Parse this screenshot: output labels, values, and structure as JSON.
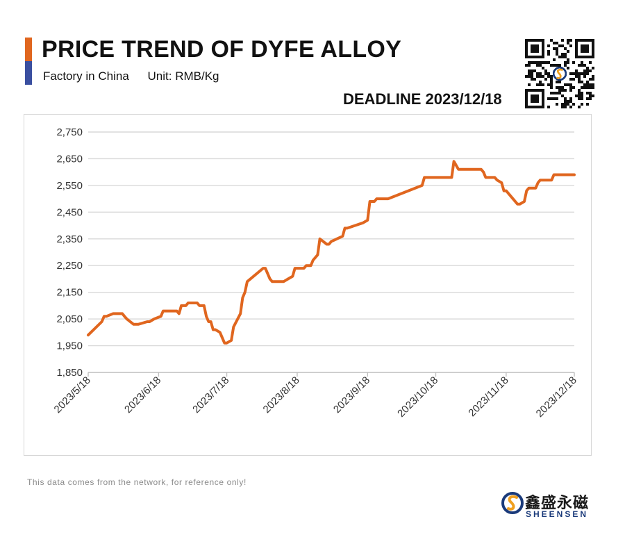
{
  "header": {
    "title": "PRICE TREND OF DYFE ALLOY",
    "factory": "Factory in China",
    "unit": "Unit: RMB/Kg",
    "deadline": "DEADLINE 2023/12/18"
  },
  "colors": {
    "accent_top": "#e0661f",
    "accent_bottom": "#3a4fa0",
    "line": "#e0661f",
    "grid": "#d9d9d9"
  },
  "footer": {
    "note": "This data comes from the network, for reference only!",
    "brand_cn": "鑫盛永磁",
    "brand_en": "SHEENSEN"
  },
  "icons": {
    "qr": "qr-code-icon",
    "logo": "sheensen-logo-icon"
  },
  "chart_data": {
    "type": "line",
    "title": "PRICE TREND OF DYFE ALLOY",
    "xlabel": "",
    "ylabel": "",
    "ylim": [
      1850,
      2750
    ],
    "yticks": [
      1850,
      1950,
      2050,
      2150,
      2250,
      2350,
      2450,
      2550,
      2650,
      2750
    ],
    "ytick_labels": [
      "1,850",
      "1,950",
      "2,050",
      "2,150",
      "2,250",
      "2,350",
      "2,450",
      "2,550",
      "2,650",
      "2,750"
    ],
    "xticks": [
      "2023/5/18",
      "2023/6/18",
      "2023/7/18",
      "2023/8/18",
      "2023/9/18",
      "2023/10/18",
      "2023/11/18",
      "2023/12/18"
    ],
    "grid": true,
    "legend": "none",
    "series": [
      {
        "x": [
          "2023/5/18",
          "2023/5/24",
          "2023/5/25",
          "2023/5/26",
          "2023/5/29",
          "2023/6/2",
          "2023/6/3",
          "2023/6/4",
          "2023/6/7",
          "2023/6/9",
          "2023/6/13",
          "2023/6/14",
          "2023/6/16",
          "2023/6/19",
          "2023/6/20",
          "2023/6/26",
          "2023/6/27",
          "2023/6/28",
          "2023/6/30",
          "2023/7/1",
          "2023/7/5",
          "2023/7/6",
          "2023/7/8",
          "2023/7/9",
          "2023/7/10",
          "2023/7/11",
          "2023/7/12",
          "2023/7/13",
          "2023/7/15",
          "2023/7/17",
          "2023/7/18",
          "2023/7/20",
          "2023/7/21",
          "2023/7/24",
          "2023/7/25",
          "2023/7/26",
          "2023/7/27",
          "2023/8/3",
          "2023/8/4",
          "2023/8/6",
          "2023/8/7",
          "2023/8/11",
          "2023/8/12",
          "2023/8/14",
          "2023/8/16",
          "2023/8/17",
          "2023/8/18",
          "2023/8/19",
          "2023/8/21",
          "2023/8/22",
          "2023/8/24",
          "2023/8/25",
          "2023/8/27",
          "2023/8/28",
          "2023/8/31",
          "2023/9/1",
          "2023/9/2",
          "2023/9/7",
          "2023/9/8",
          "2023/9/9",
          "2023/9/16",
          "2023/9/18",
          "2023/9/19",
          "2023/9/21",
          "2023/9/22",
          "2023/9/23",
          "2023/9/27",
          "2023/10/12",
          "2023/10/13",
          "2023/10/14",
          "2023/10/25",
          "2023/10/26",
          "2023/10/28",
          "2023/11/3",
          "2023/11/4",
          "2023/11/7",
          "2023/11/8",
          "2023/11/9",
          "2023/11/10",
          "2023/11/13",
          "2023/11/14",
          "2023/11/16",
          "2023/11/17",
          "2023/11/18",
          "2023/11/23",
          "2023/11/24",
          "2023/11/26",
          "2023/11/27",
          "2023/11/28",
          "2023/12/1",
          "2023/12/2",
          "2023/12/3",
          "2023/12/4",
          "2023/12/8",
          "2023/12/9",
          "2023/12/18"
        ],
        "values": [
          1990,
          2040,
          2060,
          2060,
          2070,
          2070,
          2060,
          2050,
          2030,
          2030,
          2040,
          2040,
          2050,
          2060,
          2080,
          2080,
          2070,
          2100,
          2100,
          2110,
          2110,
          2100,
          2100,
          2060,
          2040,
          2040,
          2010,
          2010,
          2000,
          1960,
          1960,
          1970,
          2020,
          2070,
          2130,
          2150,
          2190,
          2240,
          2240,
          2200,
          2190,
          2190,
          2190,
          2200,
          2210,
          2240,
          2240,
          2240,
          2240,
          2250,
          2250,
          2270,
          2290,
          2350,
          2330,
          2330,
          2340,
          2360,
          2390,
          2390,
          2410,
          2420,
          2490,
          2490,
          2500,
          2500,
          2500,
          2550,
          2580,
          2580,
          2580,
          2640,
          2610,
          2610,
          2610,
          2610,
          2600,
          2580,
          2580,
          2580,
          2570,
          2560,
          2530,
          2530,
          2480,
          2480,
          2490,
          2530,
          2540,
          2540,
          2560,
          2570,
          2570,
          2570,
          2590,
          2590
        ]
      }
    ]
  }
}
